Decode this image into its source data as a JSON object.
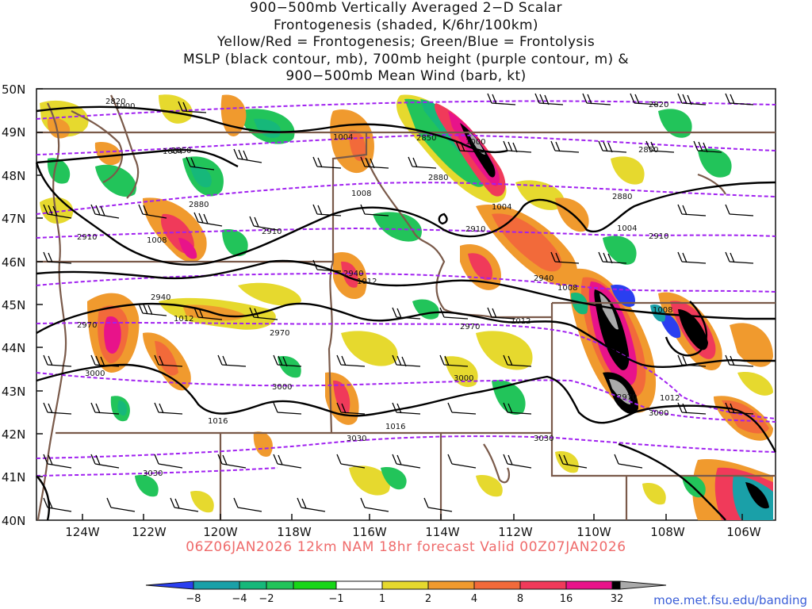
{
  "title_lines": [
    "900−500mb Vertically Averaged 2−D Scalar",
    "Frontogenesis (shaded, K/6hr/100km)",
    "Yellow/Red = Frontogenesis;  Green/Blue = Frontolysis",
    "MSLP (black contour, mb), 700mb height (purple contour, m) &",
    "900−500mb Mean Wind (barb, kt)"
  ],
  "lat_labels": [
    "50N",
    "49N",
    "48N",
    "47N",
    "46N",
    "45N",
    "44N",
    "43N",
    "42N",
    "41N",
    "40N"
  ],
  "lon_labels": [
    "124W",
    "122W",
    "120W",
    "118W",
    "116W",
    "114W",
    "112W",
    "110W",
    "108W",
    "106W"
  ],
  "valid_text": "06Z06JAN2026 12km NAM 18hr forecast Valid 00Z07JAN2026",
  "credit": "moe.met.fsu.edu/banding",
  "colorbar": {
    "labels": [
      "−8",
      "−4",
      "−2",
      "−1",
      "1",
      "2",
      "4",
      "8",
      "16",
      "32"
    ],
    "colors": [
      "#2a3ff0",
      "#1aa0a8",
      "#16b87a",
      "#22c45a",
      "#17d617",
      "#ffffff",
      "#e6d92e",
      "#f09a2e",
      "#f26a3a",
      "#f03a5a",
      "#e8138a",
      "#000000",
      "#aaaaaa"
    ]
  },
  "mslp_labels": [
    "1000",
    "1004",
    "1004",
    "1000",
    "1004",
    "1004",
    "1008",
    "1008",
    "1008",
    "1012",
    "1012",
    "1012",
    "1016",
    "1016",
    "1012",
    "1008"
  ],
  "height_labels": [
    "2820",
    "2850",
    "2850",
    "2880",
    "2880",
    "2910",
    "2910",
    "2910",
    "2940",
    "2940",
    "2940",
    "2970",
    "2970",
    "2970",
    "3000",
    "3000",
    "3000",
    "3030",
    "3030",
    "3030",
    "2820",
    "2850",
    "2880",
    "2910",
    "2970",
    "3000"
  ]
}
